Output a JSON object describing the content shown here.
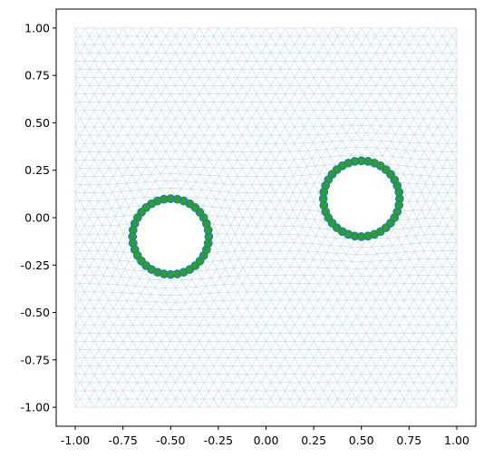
{
  "chart_data": {
    "type": "scatter",
    "title": "",
    "xlabel": "",
    "ylabel": "",
    "xlim": [
      -1.1,
      1.1
    ],
    "ylim": [
      -1.1,
      1.1
    ],
    "x_ticks": [
      "-1.00",
      "-0.75",
      "-0.50",
      "-0.25",
      "0.00",
      "0.25",
      "0.50",
      "0.75",
      "1.00"
    ],
    "y_ticks": [
      "1.00",
      "0.75",
      "0.50",
      "0.25",
      "0.00",
      "-0.25",
      "-0.50",
      "-0.75",
      "-1.00"
    ],
    "x_tick_values": [
      -1.0,
      -0.75,
      -0.5,
      -0.25,
      0.0,
      0.25,
      0.5,
      0.75,
      1.0
    ],
    "y_tick_values": [
      1.0,
      0.75,
      0.5,
      0.25,
      0.0,
      -0.25,
      -0.5,
      -0.75,
      -1.0
    ],
    "grid": false,
    "mesh": {
      "domain_x": [
        -1.0,
        1.0
      ],
      "domain_y": [
        -1.0,
        1.0
      ],
      "color": "#9ecae1"
    },
    "boundaries": [
      {
        "center": [
          -0.5,
          -0.1
        ],
        "radius": 0.2,
        "points": 36
      },
      {
        "center": [
          0.5,
          0.1
        ],
        "radius": 0.2,
        "points": 36
      }
    ],
    "marker_face_color": "#2ca02c",
    "marker_edge_color": "#1f77b4"
  }
}
